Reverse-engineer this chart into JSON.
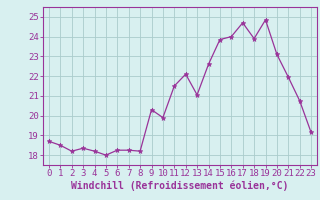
{
  "x": [
    0,
    1,
    2,
    3,
    4,
    5,
    6,
    7,
    8,
    9,
    10,
    11,
    12,
    13,
    14,
    15,
    16,
    17,
    18,
    19,
    20,
    21,
    22,
    23
  ],
  "y": [
    18.7,
    18.5,
    18.2,
    18.35,
    18.2,
    18.0,
    18.25,
    18.25,
    18.2,
    20.3,
    19.9,
    21.5,
    22.1,
    21.05,
    22.6,
    23.85,
    24.0,
    24.7,
    23.9,
    24.85,
    23.1,
    21.95,
    20.75,
    19.15
  ],
  "line_color": "#993399",
  "marker": "*",
  "marker_size": 3.5,
  "bg_color": "#d8f0f0",
  "grid_color": "#aacccc",
  "xlabel": "Windchill (Refroidissement éolien,°C)",
  "xlabel_color": "#993399",
  "tick_color": "#993399",
  "ylim": [
    17.5,
    25.5
  ],
  "xlim": [
    -0.5,
    23.5
  ],
  "yticks": [
    18,
    19,
    20,
    21,
    22,
    23,
    24,
    25
  ],
  "xticks": [
    0,
    1,
    2,
    3,
    4,
    5,
    6,
    7,
    8,
    9,
    10,
    11,
    12,
    13,
    14,
    15,
    16,
    17,
    18,
    19,
    20,
    21,
    22,
    23
  ],
  "tick_fontsize": 6.5,
  "xlabel_fontsize": 7.0
}
